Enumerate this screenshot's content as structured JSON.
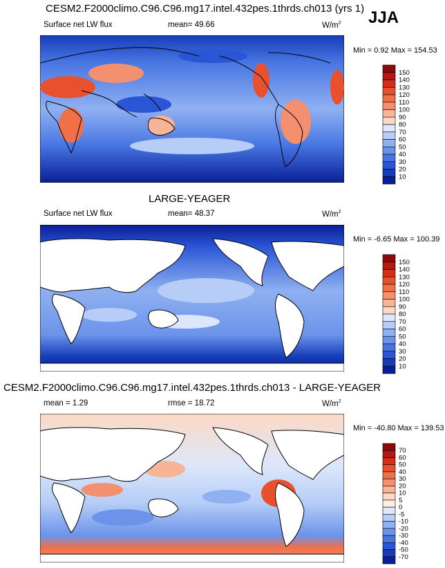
{
  "season": "JJA",
  "colors": {
    "ocean_blue": "#3d6ee8",
    "deep_blue": "#0a1e96",
    "light_blue": "#a9c3f5",
    "warm_orange": "#f06a3c",
    "land_white": "#ffffff",
    "coast": "#000000"
  },
  "chart_data": [
    {
      "type": "heatmap",
      "title": "CESM2.F2000climo.C96.C96.mg17.intel.432pes.1thrds.ch013 (yrs 1)",
      "left_label": "Surface net LW flux",
      "stat_label": "mean=",
      "stat_value": "49.66",
      "units": "W/m",
      "units_sup": "2",
      "minmax": "Min =  0.92 Max = 154.53",
      "min": 0.92,
      "max": 154.53,
      "mean": 49.66,
      "colorbar": {
        "levels": [
          "150",
          "140",
          "130",
          "120",
          "110",
          "100",
          "90",
          "80",
          "70",
          "60",
          "50",
          "40",
          "30",
          "20",
          "10"
        ],
        "colors": [
          "#8c0a0a",
          "#b01a10",
          "#d62e1a",
          "#e8502e",
          "#f07048",
          "#f49070",
          "#f8b496",
          "#fcd9c4",
          "#dce7fb",
          "#b6cdf7",
          "#8fb0f1",
          "#6b93ea",
          "#4775e2",
          "#2a56d6",
          "#163cb8",
          "#0a1e96"
        ]
      }
    },
    {
      "type": "heatmap",
      "title": "LARGE-YEAGER",
      "left_label": "Surface net LW flux",
      "stat_label": "mean=",
      "stat_value": "48.37",
      "units": "W/m",
      "units_sup": "2",
      "minmax": "Min =  -6.65 Max = 100.39",
      "min": -6.65,
      "max": 100.39,
      "mean": 48.37,
      "colorbar": {
        "levels": [
          "150",
          "140",
          "130",
          "120",
          "110",
          "100",
          "90",
          "80",
          "70",
          "60",
          "50",
          "40",
          "30",
          "20",
          "10"
        ],
        "colors": [
          "#8c0a0a",
          "#b01a10",
          "#d62e1a",
          "#e8502e",
          "#f07048",
          "#f49070",
          "#f8b496",
          "#fcd9c4",
          "#dce7fb",
          "#b6cdf7",
          "#8fb0f1",
          "#6b93ea",
          "#4775e2",
          "#2a56d6",
          "#163cb8",
          "#0a1e96"
        ]
      }
    },
    {
      "type": "heatmap",
      "title": "CESM2.F2000climo.C96.C96.mg17.intel.432pes.1thrds.ch013 - LARGE-YEAGER",
      "left_label": "mean =",
      "left_value": "1.29",
      "stat_label": "rmse =",
      "stat_value": "18.72",
      "units": "W/m",
      "units_sup": "2",
      "minmax": "Min = -40.80 Max = 139.53",
      "min": -40.8,
      "max": 139.53,
      "mean": 1.29,
      "rmse": 18.72,
      "colorbar": {
        "levels": [
          "70",
          "60",
          "50",
          "40",
          "30",
          "20",
          "10",
          "5",
          "0",
          "-5",
          "-10",
          "-20",
          "-30",
          "-40",
          "-50",
          "-70"
        ],
        "colors": [
          "#8c0a0a",
          "#b01a10",
          "#d62e1a",
          "#e8502e",
          "#f07048",
          "#f49070",
          "#f8b496",
          "#fcd9c4",
          "#fdeee4",
          "#dce7fb",
          "#b6cdf7",
          "#8fb0f1",
          "#6b93ea",
          "#4775e2",
          "#2a56d6",
          "#163cb8",
          "#0a1e96"
        ]
      }
    }
  ]
}
